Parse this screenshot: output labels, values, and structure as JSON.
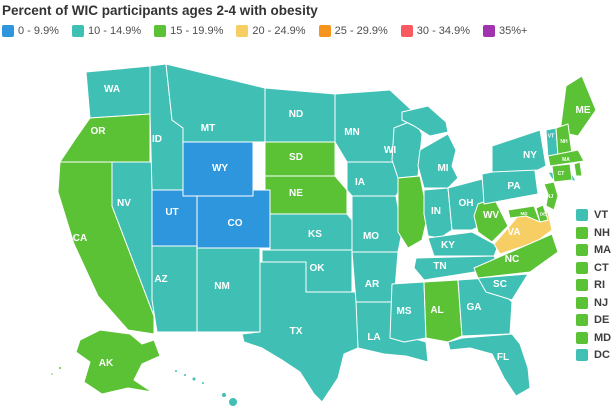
{
  "title": "Percent of WIC participants ages 2-4 with obesity",
  "chart_data": {
    "type": "heatmap",
    "subtype": "us-state-choropleth",
    "title": "Percent of WIC participants ages 2-4 with obesity",
    "legend_position": "top",
    "bins": [
      {
        "label": "0 - 9.9%",
        "color": "#2D96DC"
      },
      {
        "label": "10 - 14.9%",
        "color": "#40BFB4"
      },
      {
        "label": "15 - 19.9%",
        "color": "#5BC236"
      },
      {
        "label": "20 - 24.9%",
        "color": "#F6CE64"
      },
      {
        "label": "25 - 29.9%",
        "color": "#F7941E"
      },
      {
        "label": "30 - 34.9%",
        "color": "#F95A5F"
      },
      {
        "label": "35%+",
        "color": "#A233AE"
      }
    ],
    "states": [
      {
        "id": "WA",
        "value": "10 - 14.9%"
      },
      {
        "id": "OR",
        "value": "15 - 19.9%"
      },
      {
        "id": "CA",
        "value": "15 - 19.9%"
      },
      {
        "id": "NV",
        "value": "10 - 14.9%"
      },
      {
        "id": "ID",
        "value": "10 - 14.9%"
      },
      {
        "id": "MT",
        "value": "10 - 14.9%"
      },
      {
        "id": "WY",
        "value": "0 - 9.9%"
      },
      {
        "id": "UT",
        "value": "0 - 9.9%"
      },
      {
        "id": "CO",
        "value": "0 - 9.9%"
      },
      {
        "id": "AZ",
        "value": "10 - 14.9%"
      },
      {
        "id": "NM",
        "value": "10 - 14.9%"
      },
      {
        "id": "ND",
        "value": "10 - 14.9%"
      },
      {
        "id": "SD",
        "value": "15 - 19.9%"
      },
      {
        "id": "NE",
        "value": "15 - 19.9%"
      },
      {
        "id": "KS",
        "value": "10 - 14.9%"
      },
      {
        "id": "OK",
        "value": "10 - 14.9%"
      },
      {
        "id": "TX",
        "value": "10 - 14.9%"
      },
      {
        "id": "MN",
        "value": "10 - 14.9%"
      },
      {
        "id": "IA",
        "value": "10 - 14.9%"
      },
      {
        "id": "MO",
        "value": "10 - 14.9%"
      },
      {
        "id": "AR",
        "value": "10 - 14.9%"
      },
      {
        "id": "LA",
        "value": "10 - 14.9%"
      },
      {
        "id": "WI",
        "value": "10 - 14.9%"
      },
      {
        "id": "IL",
        "value": "15 - 19.9%"
      },
      {
        "id": "MI",
        "value": "10 - 14.9%"
      },
      {
        "id": "IN",
        "value": "10 - 14.9%"
      },
      {
        "id": "OH",
        "value": "10 - 14.9%"
      },
      {
        "id": "KY",
        "value": "10 - 14.9%"
      },
      {
        "id": "TN",
        "value": "10 - 14.9%"
      },
      {
        "id": "MS",
        "value": "10 - 14.9%"
      },
      {
        "id": "AL",
        "value": "15 - 19.9%"
      },
      {
        "id": "GA",
        "value": "10 - 14.9%"
      },
      {
        "id": "SC",
        "value": "10 - 14.9%"
      },
      {
        "id": "FL",
        "value": "10 - 14.9%"
      },
      {
        "id": "WV",
        "value": "15 - 19.9%"
      },
      {
        "id": "VA",
        "value": "20 - 24.9%"
      },
      {
        "id": "NC",
        "value": "15 - 19.9%"
      },
      {
        "id": "PA",
        "value": "10 - 14.9%"
      },
      {
        "id": "NY",
        "value": "10 - 14.9%"
      },
      {
        "id": "ME",
        "value": "15 - 19.9%"
      },
      {
        "id": "VT",
        "value": "10 - 14.9%"
      },
      {
        "id": "NH",
        "value": "15 - 19.9%"
      },
      {
        "id": "MA",
        "value": "15 - 19.9%"
      },
      {
        "id": "CT",
        "value": "15 - 19.9%"
      },
      {
        "id": "RI",
        "value": "15 - 19.9%"
      },
      {
        "id": "NJ",
        "value": "15 - 19.9%"
      },
      {
        "id": "DE",
        "value": "15 - 19.9%"
      },
      {
        "id": "MD",
        "value": "15 - 19.9%"
      },
      {
        "id": "DC",
        "value": "10 - 14.9%"
      },
      {
        "id": "AK",
        "value": "15 - 19.9%"
      },
      {
        "id": "HI",
        "value": "10 - 14.9%"
      }
    ]
  },
  "side_list": {
    "items": [
      "VT",
      "NH",
      "MA",
      "CT",
      "RI",
      "NJ",
      "DE",
      "MD",
      "DC"
    ]
  }
}
